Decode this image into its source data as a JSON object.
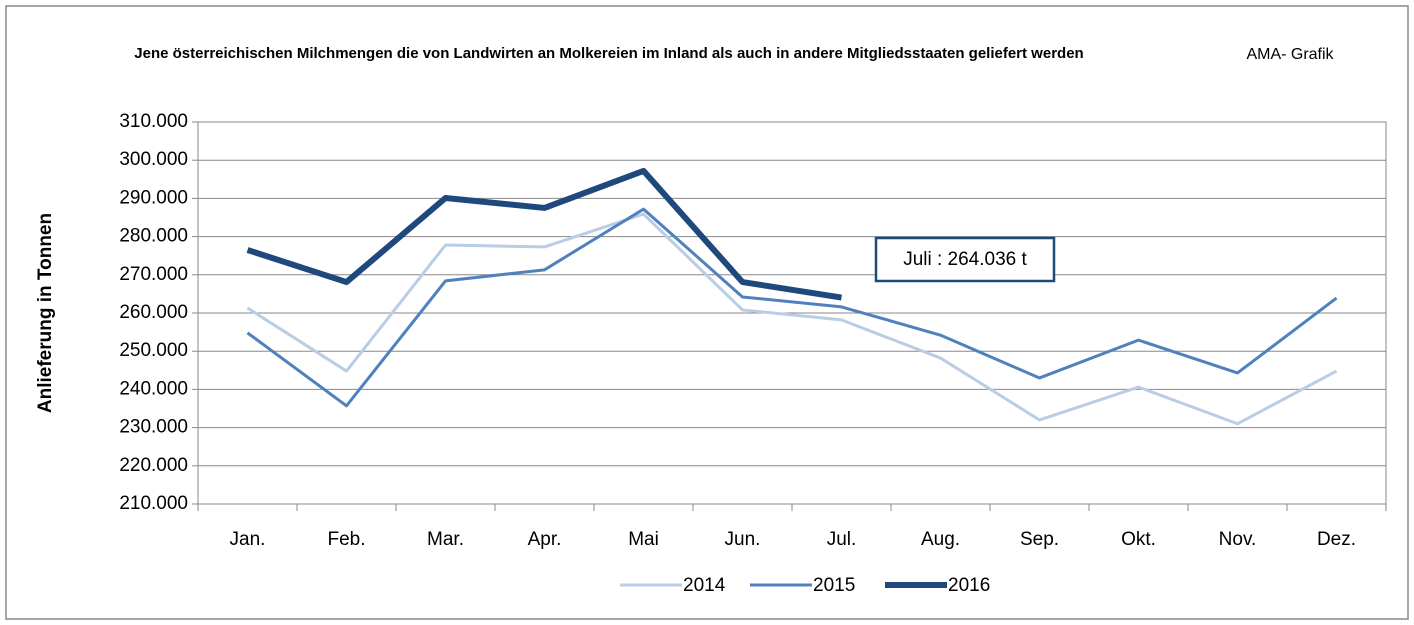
{
  "chart_data": {
    "type": "line",
    "title": "Jene österreichischen Milchmengen die von Landwirten an Molkereien im Inland als auch in andere Mitgliedsstaaten geliefert werden",
    "source": "AMA- Grafik",
    "ylabel": "Anlieferung in Tonnen",
    "annotation": "Juli : 264.036 t",
    "categories": [
      "Jan.",
      "Feb.",
      "Mar.",
      "Apr.",
      "Mai",
      "Jun.",
      "Jul.",
      "Aug.",
      "Sep.",
      "Okt.",
      "Nov.",
      "Dez."
    ],
    "series": [
      {
        "name": "2014",
        "color": "#b9cde5",
        "values": [
          261300,
          244800,
          277800,
          277300,
          285900,
          260800,
          258200,
          248200,
          232000,
          240600,
          231000,
          244800
        ]
      },
      {
        "name": "2015",
        "color": "#4f81bd",
        "values": [
          254800,
          235700,
          268400,
          271300,
          287200,
          264200,
          261600,
          254200,
          243000,
          252900,
          244300,
          263900
        ]
      },
      {
        "name": "2016",
        "color": "#1f497d",
        "values": [
          276500,
          268100,
          290100,
          287500,
          297200,
          268100,
          264036,
          null,
          null,
          null,
          null,
          null
        ]
      }
    ],
    "ylim": [
      210000,
      310000
    ],
    "yticks": [
      {
        "value": 210000,
        "label": "210.000"
      },
      {
        "value": 220000,
        "label": "220.000"
      },
      {
        "value": 230000,
        "label": "230.000"
      },
      {
        "value": 240000,
        "label": "240.000"
      },
      {
        "value": 250000,
        "label": "250.000"
      },
      {
        "value": 260000,
        "label": "260.000"
      },
      {
        "value": 270000,
        "label": "270.000"
      },
      {
        "value": 280000,
        "label": "280.000"
      },
      {
        "value": 290000,
        "label": "290.000"
      },
      {
        "value": 300000,
        "label": "300.000"
      },
      {
        "value": 310000,
        "label": "310.000"
      }
    ],
    "grid": true,
    "legend": "bottom"
  }
}
